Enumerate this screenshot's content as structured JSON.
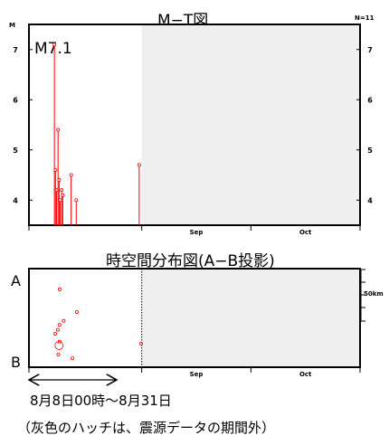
{
  "chart_data": [
    {
      "type": "scatter",
      "title": "M−T図",
      "ylabel": "M",
      "ylim": [
        3.5,
        7.5
      ],
      "y_ticks": [
        "4",
        "5",
        "6",
        "7"
      ],
      "x_ticks": [
        "Sep",
        "Oct"
      ],
      "count_label": "N=11",
      "annotation": "M7.1",
      "style": "stems",
      "color": "#ff0000",
      "no_data_shade": "#efefef",
      "data_end_date": "2024-09-01",
      "points": [
        {
          "date": "2024-08-08",
          "m": 7.1
        },
        {
          "date": "2024-08-08",
          "m": 4.6
        },
        {
          "date": "2024-08-08",
          "m": 4.2
        },
        {
          "date": "2024-08-09",
          "m": 5.4
        },
        {
          "date": "2024-08-09",
          "m": 4.4
        },
        {
          "date": "2024-08-09",
          "m": 4.0
        },
        {
          "date": "2024-08-10",
          "m": 4.2
        },
        {
          "date": "2024-08-10",
          "m": 4.1
        },
        {
          "date": "2024-08-12",
          "m": 4.5
        },
        {
          "date": "2024-08-14",
          "m": 4.0
        },
        {
          "date": "2024-08-31",
          "m": 4.7
        }
      ]
    },
    {
      "type": "scatter",
      "title": "時空間分布図(A−B投影)",
      "end_labels": [
        "A",
        "B"
      ],
      "scale_label": "50km",
      "x_ticks": [
        "Sep",
        "Oct"
      ],
      "color": "#ff0000",
      "no_data_shade": "#efefef",
      "points": [
        {
          "date": "2024-08-08",
          "position": 0.21,
          "m": 4.2
        },
        {
          "date": "2024-08-08",
          "position": 0.57,
          "m": 4.6
        },
        {
          "date": "2024-08-08",
          "position": 0.62,
          "m": 4.0
        },
        {
          "date": "2024-08-08",
          "position": 0.66,
          "m": 4.1
        },
        {
          "date": "2024-08-08",
          "position": 0.78,
          "m": 7.1
        },
        {
          "date": "2024-08-09",
          "position": 0.74,
          "m": 4.4
        },
        {
          "date": "2024-08-09",
          "position": 0.87,
          "m": 4.5
        },
        {
          "date": "2024-08-10",
          "position": 0.53,
          "m": 4.0
        },
        {
          "date": "2024-08-12",
          "position": 0.91,
          "m": 4.0
        },
        {
          "date": "2024-08-14",
          "position": 0.44,
          "m": 4.2
        },
        {
          "date": "2024-08-31",
          "position": 0.76,
          "m": 4.7
        }
      ]
    }
  ],
  "caption": {
    "period": "8月8日00時～8月31日",
    "note": "（灰色のハッチは、震源データの期間外）"
  }
}
